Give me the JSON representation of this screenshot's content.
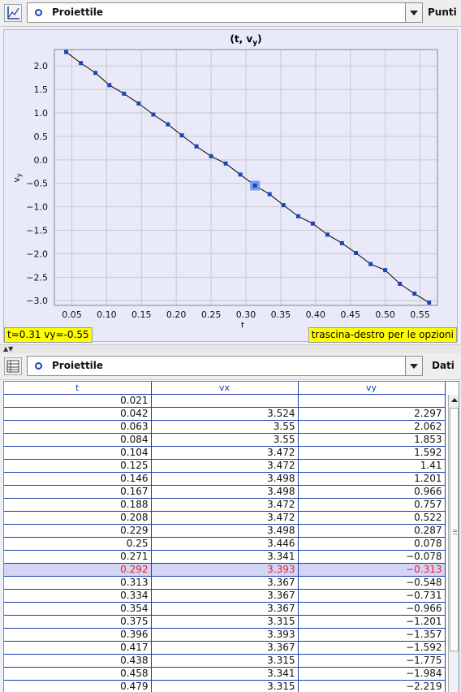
{
  "top_toolbar": {
    "dropdown_value": "Proiettile",
    "view_label": "Punti"
  },
  "plot": {
    "title": "(t, v_y)",
    "status_readout": "t=0.31  vy=-0.55",
    "hint": "trascina-destro per le opzioni"
  },
  "chart_data": {
    "type": "line",
    "title": "(t, vy)",
    "xlabel": "t",
    "ylabel": "vy",
    "xlim": [
      0.025,
      0.575
    ],
    "ylim": [
      -3.1,
      2.35
    ],
    "grid": true,
    "x_ticks": [
      0.05,
      0.1,
      0.15,
      0.2,
      0.25,
      0.3,
      0.35,
      0.4,
      0.45,
      0.5,
      0.55
    ],
    "x_tick_labels": [
      "0.05",
      "0.10",
      "0.15",
      "0.20",
      "0.25",
      "0.30",
      "0.35",
      "0.40",
      "0.45",
      "0.50",
      "0.55"
    ],
    "y_ticks": [
      2.0,
      1.5,
      1.0,
      0.5,
      0.0,
      -0.5,
      -1.0,
      -1.5,
      -2.0,
      -2.5,
      -3.0
    ],
    "y_tick_labels": [
      "2.0",
      "1.5",
      "1.0",
      "0.5",
      "0.0",
      "−0.5",
      "−1.0",
      "−1.5",
      "−2.0",
      "−2.5",
      "−3.0"
    ],
    "x": [
      0.042,
      0.063,
      0.084,
      0.104,
      0.125,
      0.146,
      0.167,
      0.188,
      0.208,
      0.229,
      0.25,
      0.271,
      0.292,
      0.313,
      0.334,
      0.354,
      0.375,
      0.396,
      0.417,
      0.438,
      0.458,
      0.479,
      0.5,
      0.521,
      0.542,
      0.563
    ],
    "y": [
      2.297,
      2.062,
      1.853,
      1.592,
      1.41,
      1.201,
      0.966,
      0.757,
      0.522,
      0.287,
      0.078,
      -0.078,
      -0.313,
      -0.548,
      -0.731,
      -0.966,
      -1.201,
      -1.357,
      -1.592,
      -1.775,
      -1.984,
      -2.219,
      -2.35,
      -2.64,
      -2.85,
      -3.04
    ],
    "highlight_index": 13,
    "colors": {
      "line": "#000000",
      "marker": "#1c46b5",
      "highlight": "#7b9be8",
      "grid": "#c8c8c8"
    }
  },
  "bottom_toolbar": {
    "dropdown_value": "Proiettile",
    "view_label": "Dati"
  },
  "table": {
    "columns": [
      "t",
      "vx",
      "vy"
    ],
    "selected_row": 13,
    "rows": [
      [
        "0.021",
        "",
        ""
      ],
      [
        "0.042",
        "3.524",
        "2.297"
      ],
      [
        "0.063",
        "3.55",
        "2.062"
      ],
      [
        "0.084",
        "3.55",
        "1.853"
      ],
      [
        "0.104",
        "3.472",
        "1.592"
      ],
      [
        "0.125",
        "3.472",
        "1.41"
      ],
      [
        "0.146",
        "3.498",
        "1.201"
      ],
      [
        "0.167",
        "3.498",
        "0.966"
      ],
      [
        "0.188",
        "3.472",
        "0.757"
      ],
      [
        "0.208",
        "3.472",
        "0.522"
      ],
      [
        "0.229",
        "3.498",
        "0.287"
      ],
      [
        "0.25",
        "3.446",
        "0.078"
      ],
      [
        "0.271",
        "3.341",
        "−0.078"
      ],
      [
        "0.292",
        "3.393",
        "−0.313"
      ],
      [
        "0.313",
        "3.367",
        "−0.548"
      ],
      [
        "0.334",
        "3.367",
        "−0.731"
      ],
      [
        "0.354",
        "3.367",
        "−0.966"
      ],
      [
        "0.375",
        "3.315",
        "−1.201"
      ],
      [
        "0.396",
        "3.393",
        "−1.357"
      ],
      [
        "0.417",
        "3.367",
        "−1.592"
      ],
      [
        "0.438",
        "3.315",
        "−1.775"
      ],
      [
        "0.458",
        "3.341",
        "−1.984"
      ],
      [
        "0.479",
        "3.315",
        "−2.219"
      ]
    ]
  }
}
